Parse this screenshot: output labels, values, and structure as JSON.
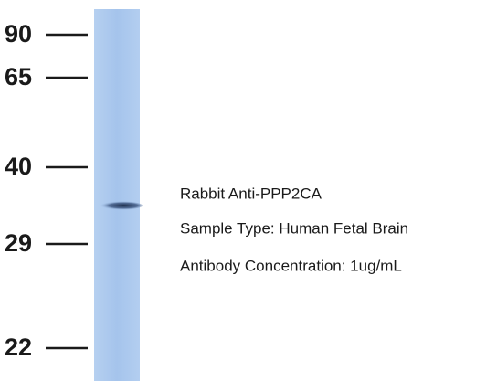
{
  "markers": [
    {
      "label": 90
    },
    {
      "label": 65
    },
    {
      "label": 40
    },
    {
      "label": 29
    },
    {
      "label": 22
    }
  ],
  "annotation": {
    "antibody": "Rabbit Anti-PPP2CA",
    "sample": "Sample Type: Human Fetal Brain",
    "concentration": "Antibody Concentration: 1ug/mL"
  }
}
